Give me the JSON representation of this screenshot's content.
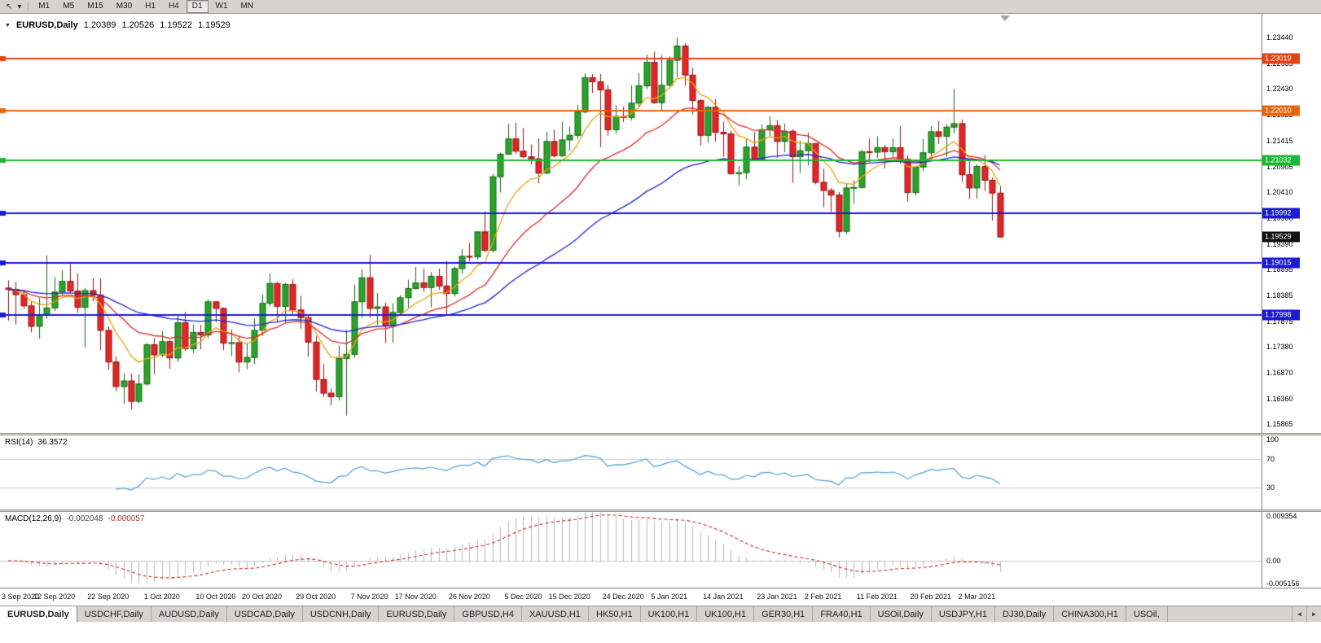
{
  "icons": {
    "pointer": "↖",
    "caret": "▾",
    "collapse": "▼",
    "tab_prev": "◄",
    "tab_next": "►"
  },
  "toolbar": {
    "timeframes": [
      "M1",
      "M5",
      "M15",
      "M30",
      "H1",
      "H4",
      "D1",
      "W1",
      "MN"
    ],
    "selected_timeframe": "D1"
  },
  "chart": {
    "header": {
      "symbol": "EURUSD,Daily",
      "open": "1.20389",
      "high": "1.20526",
      "low": "1.19522",
      "close": "1.19529"
    },
    "current_price": "1.19529",
    "current_price_box_color": "#111111",
    "price_scale_ticks": [
      "1.23440",
      "1.22935",
      "1.22430",
      "1.21925",
      "1.21415",
      "1.20905",
      "1.20410",
      "1.19900",
      "1.19390",
      "1.18895",
      "1.18385",
      "1.17875",
      "1.17380",
      "1.16870",
      "1.16360",
      "1.15865"
    ],
    "hlines": [
      {
        "price": 1.23019,
        "label": "1.23019",
        "color": "#e64214"
      },
      {
        "price": 1.2201,
        "label": "1.22010",
        "color": "#e8650f"
      },
      {
        "price": 1.21032,
        "label": "1.21032",
        "color": "#1eb830"
      },
      {
        "price": 1.19992,
        "label": "1.19992",
        "color": "#1a1ad1"
      },
      {
        "price": 1.19015,
        "label": "1.19015",
        "color": "#1a1ad1"
      },
      {
        "price": 1.17998,
        "label": "1.17998",
        "color": "#1a1ad1"
      }
    ]
  },
  "chart_data": {
    "type": "candlestick",
    "symbol": "EURUSD",
    "timeframe": "Daily",
    "price_range": [
      1.1569,
      1.239
    ],
    "up_color": {
      "fill": "#2aa32a",
      "border": "#156815"
    },
    "down_color": {
      "fill": "#e42525",
      "border": "#8f1414"
    },
    "moving_averages": [
      {
        "name": "fast-ma",
        "period": 8,
        "color": "#f2a20d"
      },
      {
        "name": "medium-ma",
        "period": 20,
        "color": "#e02828"
      },
      {
        "name": "slow-ma",
        "period": 45,
        "color": "#1f24cf"
      }
    ],
    "x_labels": [
      {
        "text": "3 Sep 2020",
        "bar": 0
      },
      {
        "text": "12 Sep 2020",
        "bar": 6
      },
      {
        "text": "22 Sep 2020",
        "bar": 13
      },
      {
        "text": "1 Oct 2020",
        "bar": 20
      },
      {
        "text": "10 Oct 2020",
        "bar": 27
      },
      {
        "text": "20 Oct 2020",
        "bar": 33
      },
      {
        "text": "29 Oct 2020",
        "bar": 40
      },
      {
        "text": "7 Nov 2020",
        "bar": 47
      },
      {
        "text": "17 Nov 2020",
        "bar": 53
      },
      {
        "text": "26 Nov 2020",
        "bar": 60
      },
      {
        "text": "5 Dec 2020",
        "bar": 67
      },
      {
        "text": "15 Dec 2020",
        "bar": 73
      },
      {
        "text": "24 Dec 2020",
        "bar": 80
      },
      {
        "text": "5 Jan 2021",
        "bar": 86
      },
      {
        "text": "14 Jan 2021",
        "bar": 93
      },
      {
        "text": "23 Jan 2021",
        "bar": 100
      },
      {
        "text": "2 Feb 2021",
        "bar": 106
      },
      {
        "text": "11 Feb 2021",
        "bar": 113
      },
      {
        "text": "20 Feb 2021",
        "bar": 120
      },
      {
        "text": "2 Mar 2021",
        "bar": 126
      }
    ],
    "candles": [
      [
        1.1853,
        1.1868,
        1.1789,
        1.185
      ],
      [
        1.185,
        1.1865,
        1.1781,
        1.184
      ],
      [
        1.184,
        1.1849,
        1.1812,
        1.1818
      ],
      [
        1.1818,
        1.1827,
        1.1766,
        1.1778
      ],
      [
        1.1778,
        1.1834,
        1.1754,
        1.1801
      ],
      [
        1.1801,
        1.1917,
        1.1793,
        1.1814
      ],
      [
        1.1814,
        1.1874,
        1.1808,
        1.1845
      ],
      [
        1.1845,
        1.1888,
        1.1839,
        1.1866
      ],
      [
        1.1866,
        1.19,
        1.1844,
        1.1847
      ],
      [
        1.1847,
        1.1882,
        1.1805,
        1.1815
      ],
      [
        1.1815,
        1.1853,
        1.1737,
        1.1848
      ],
      [
        1.1848,
        1.1872,
        1.1827,
        1.1839
      ],
      [
        1.1839,
        1.1872,
        1.1731,
        1.177
      ],
      [
        1.177,
        1.1778,
        1.1693,
        1.1708
      ],
      [
        1.1708,
        1.1719,
        1.1651,
        1.166
      ],
      [
        1.166,
        1.1686,
        1.1626,
        1.1671
      ],
      [
        1.1671,
        1.1685,
        1.1615,
        1.1631
      ],
      [
        1.1631,
        1.1684,
        1.1627,
        1.1665
      ],
      [
        1.1665,
        1.1745,
        1.1662,
        1.1742
      ],
      [
        1.1742,
        1.1755,
        1.1684,
        1.1722
      ],
      [
        1.1722,
        1.1769,
        1.1717,
        1.1748
      ],
      [
        1.1748,
        1.1751,
        1.1695,
        1.1716
      ],
      [
        1.1716,
        1.1798,
        1.1708,
        1.1785
      ],
      [
        1.1785,
        1.1806,
        1.173,
        1.1734
      ],
      [
        1.1734,
        1.1782,
        1.1725,
        1.1766
      ],
      [
        1.1766,
        1.1781,
        1.1733,
        1.1761
      ],
      [
        1.1761,
        1.1831,
        1.1754,
        1.1826
      ],
      [
        1.1826,
        1.1827,
        1.1786,
        1.1813
      ],
      [
        1.1813,
        1.1815,
        1.1731,
        1.1745
      ],
      [
        1.1745,
        1.1772,
        1.172,
        1.1746
      ],
      [
        1.1746,
        1.1758,
        1.1688,
        1.1708
      ],
      [
        1.1708,
        1.1745,
        1.1694,
        1.1717
      ],
      [
        1.1717,
        1.1794,
        1.1704,
        1.177
      ],
      [
        1.177,
        1.184,
        1.176,
        1.1823
      ],
      [
        1.1823,
        1.1881,
        1.1817,
        1.1862
      ],
      [
        1.1862,
        1.1865,
        1.1787,
        1.1817
      ],
      [
        1.1817,
        1.1863,
        1.1785,
        1.186
      ],
      [
        1.186,
        1.187,
        1.1802,
        1.181
      ],
      [
        1.181,
        1.1838,
        1.1773,
        1.1795
      ],
      [
        1.1795,
        1.18,
        1.1718,
        1.1747
      ],
      [
        1.1747,
        1.1759,
        1.165,
        1.1674
      ],
      [
        1.1674,
        1.1704,
        1.164,
        1.1647
      ],
      [
        1.1647,
        1.1656,
        1.1623,
        1.164
      ],
      [
        1.164,
        1.174,
        1.1633,
        1.1715
      ],
      [
        1.1715,
        1.1771,
        1.1603,
        1.1723
      ],
      [
        1.1723,
        1.186,
        1.1716,
        1.1826
      ],
      [
        1.1826,
        1.189,
        1.1795,
        1.1873
      ],
      [
        1.1873,
        1.1918,
        1.1795,
        1.1813
      ],
      [
        1.1813,
        1.1843,
        1.1781,
        1.1816
      ],
      [
        1.1816,
        1.1824,
        1.1745,
        1.1779
      ],
      [
        1.1779,
        1.1823,
        1.1746,
        1.1805
      ],
      [
        1.1805,
        1.1839,
        1.1799,
        1.1834
      ],
      [
        1.1834,
        1.1869,
        1.1814,
        1.1852
      ],
      [
        1.1852,
        1.1894,
        1.185,
        1.1863
      ],
      [
        1.1863,
        1.1891,
        1.1846,
        1.1854
      ],
      [
        1.1854,
        1.1884,
        1.1815,
        1.1876
      ],
      [
        1.1876,
        1.1891,
        1.1849,
        1.1857
      ],
      [
        1.1857,
        1.1906,
        1.18,
        1.1842
      ],
      [
        1.1842,
        1.1895,
        1.1836,
        1.1891
      ],
      [
        1.1891,
        1.1929,
        1.1881,
        1.1915
      ],
      [
        1.1915,
        1.1941,
        1.1905,
        1.1914
      ],
      [
        1.1914,
        1.1964,
        1.1909,
        1.1963
      ],
      [
        1.1963,
        1.2003,
        1.1923,
        1.1927
      ],
      [
        1.1927,
        1.2076,
        1.1923,
        1.2071
      ],
      [
        1.2071,
        1.2118,
        1.204,
        1.2115
      ],
      [
        1.2115,
        1.2175,
        1.2114,
        1.2145
      ],
      [
        1.2145,
        1.2177,
        1.2116,
        1.2121
      ],
      [
        1.2121,
        1.2166,
        1.2108,
        1.211
      ],
      [
        1.211,
        1.2134,
        1.2095,
        1.2106
      ],
      [
        1.2106,
        1.2146,
        1.2058,
        1.2078
      ],
      [
        1.2078,
        1.2159,
        1.2076,
        1.214
      ],
      [
        1.214,
        1.2163,
        1.2109,
        1.2112
      ],
      [
        1.2112,
        1.2178,
        1.211,
        1.2143
      ],
      [
        1.2143,
        1.2169,
        1.2122,
        1.2152
      ],
      [
        1.2152,
        1.2212,
        1.2145,
        1.2198
      ],
      [
        1.2198,
        1.2273,
        1.2195,
        1.2265
      ],
      [
        1.2265,
        1.2272,
        1.2235,
        1.2257
      ],
      [
        1.2257,
        1.2272,
        1.2129,
        1.2241
      ],
      [
        1.2241,
        1.225,
        1.2151,
        1.2163
      ],
      [
        1.2163,
        1.2211,
        1.2155,
        1.2189
      ],
      [
        1.2189,
        1.2208,
        1.2178,
        1.2187
      ],
      [
        1.2187,
        1.225,
        1.2181,
        1.2215
      ],
      [
        1.2215,
        1.2274,
        1.2208,
        1.2249
      ],
      [
        1.2249,
        1.231,
        1.2243,
        1.2295
      ],
      [
        1.2295,
        1.2316,
        1.2214,
        1.2216
      ],
      [
        1.2216,
        1.2309,
        1.22,
        1.225
      ],
      [
        1.225,
        1.2307,
        1.2246,
        1.2299
      ],
      [
        1.2299,
        1.2344,
        1.2266,
        1.2327
      ],
      [
        1.2327,
        1.2332,
        1.2249,
        1.227
      ],
      [
        1.227,
        1.2285,
        1.2193,
        1.222
      ],
      [
        1.222,
        1.2223,
        1.2132,
        1.2152
      ],
      [
        1.2152,
        1.221,
        1.2137,
        1.2207
      ],
      [
        1.2207,
        1.2223,
        1.214,
        1.2158
      ],
      [
        1.2158,
        1.2179,
        1.211,
        1.2155
      ],
      [
        1.2155,
        1.2161,
        1.2075,
        1.2077
      ],
      [
        1.2077,
        1.2092,
        1.2054,
        1.2079
      ],
      [
        1.2079,
        1.2145,
        1.2066,
        1.2129
      ],
      [
        1.2129,
        1.2158,
        1.2101,
        1.2105
      ],
      [
        1.2105,
        1.2173,
        1.2103,
        1.2163
      ],
      [
        1.2163,
        1.2189,
        1.215,
        1.2171
      ],
      [
        1.2171,
        1.2182,
        1.2108,
        1.214
      ],
      [
        1.214,
        1.2175,
        1.2119,
        1.216
      ],
      [
        1.216,
        1.2164,
        1.2059,
        1.211
      ],
      [
        1.211,
        1.2142,
        1.2078,
        1.2122
      ],
      [
        1.2122,
        1.2158,
        1.2093,
        1.2136
      ],
      [
        1.2136,
        1.2136,
        1.2056,
        1.206
      ],
      [
        1.206,
        1.2087,
        1.2011,
        1.2044
      ],
      [
        1.2044,
        1.2049,
        1.2002,
        1.2035
      ],
      [
        1.2035,
        1.2041,
        1.1952,
        1.1964
      ],
      [
        1.1964,
        1.2058,
        1.1958,
        1.2049
      ],
      [
        1.2049,
        1.2064,
        1.2018,
        1.205
      ],
      [
        1.205,
        1.2123,
        1.2048,
        1.212
      ],
      [
        1.212,
        1.2145,
        1.2099,
        1.2119
      ],
      [
        1.2119,
        1.215,
        1.2108,
        1.2128
      ],
      [
        1.2128,
        1.2133,
        1.2087,
        1.212
      ],
      [
        1.212,
        1.2146,
        1.211,
        1.2128
      ],
      [
        1.2128,
        1.217,
        1.2096,
        1.2105
      ],
      [
        1.2105,
        1.2113,
        1.2023,
        1.204
      ],
      [
        1.204,
        1.2092,
        1.2035,
        1.209
      ],
      [
        1.209,
        1.2145,
        1.2082,
        1.2118
      ],
      [
        1.2118,
        1.217,
        1.2105,
        1.2159
      ],
      [
        1.2159,
        1.218,
        1.2135,
        1.215
      ],
      [
        1.215,
        1.2174,
        1.211,
        1.2168
      ],
      [
        1.2168,
        1.2243,
        1.2156,
        1.2175
      ],
      [
        1.2175,
        1.2183,
        1.2061,
        1.2075
      ],
      [
        1.2075,
        1.2101,
        1.2027,
        1.2049
      ],
      [
        1.2049,
        1.2095,
        1.2028,
        1.2091
      ],
      [
        1.2091,
        1.2113,
        1.2043,
        1.2064
      ],
      [
        1.2064,
        1.207,
        1.1985,
        1.2039
      ],
      [
        1.20389,
        1.20526,
        1.19522,
        1.19529
      ]
    ]
  },
  "rsi": {
    "label": "RSI(14)",
    "value": "36.3572",
    "period": 14,
    "line_color": "#4e9fd4",
    "range": [
      0,
      103
    ],
    "levels": [
      {
        "text": "100",
        "value": 100
      },
      {
        "text": "70",
        "value": 70
      },
      {
        "text": "30",
        "value": 30
      }
    ]
  },
  "macd": {
    "label": "MACD(12,26,9)",
    "value_main": "-0.002048",
    "value_signal": "-0.000057",
    "fast": 12,
    "slow": 26,
    "signal": 9,
    "histogram_color": "#b9b9b9",
    "signal_color": "#d02020",
    "range": [
      -0.005156,
      0.009354
    ],
    "scale": [
      {
        "text": "0.009354",
        "value": 0.009354
      },
      {
        "text": "0.00",
        "value": 0
      },
      {
        "text": "-0.005156",
        "value": -0.005156
      }
    ]
  },
  "tabs": {
    "active_index": 0,
    "items": [
      "EURUSD,Daily",
      "USDCHF,Daily",
      "AUDUSD,Daily",
      "USDCAD,Daily",
      "USDCNH,Daily",
      "EURUSD,Daily",
      "GBPUSD,H4",
      "XAUUSD,H1",
      "HK50,H1",
      "UK100,H1",
      "UK100,H1",
      "GER30,H1",
      "FRA40,H1",
      "USOil,Daily",
      "USDJPY,H1",
      "DJ30,Daily",
      "CHINA300,H1",
      "USOil,"
    ]
  }
}
